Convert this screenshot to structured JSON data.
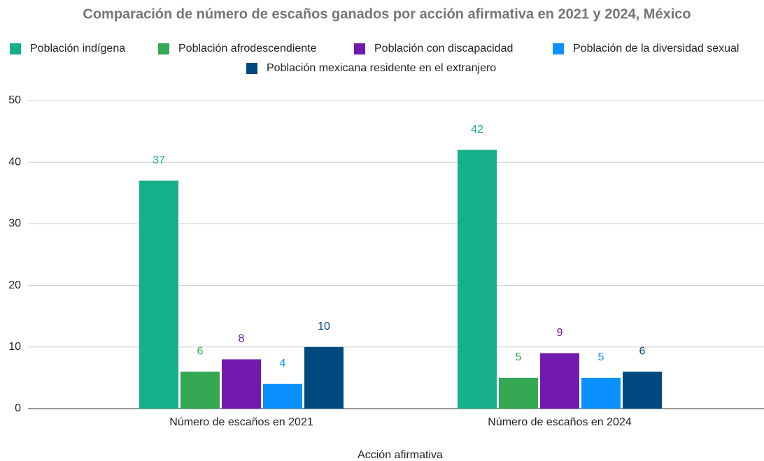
{
  "chart_data": {
    "type": "bar",
    "title": "Comparación de número de escaños ganados por acción afirmativa en 2021 y 2024, México",
    "x_label": "Acción afirmativa",
    "categories": [
      "Número de escaños en 2021",
      "Número de escaños en 2024"
    ],
    "series": [
      {
        "name": "Población indígena",
        "color": "#15b08a",
        "values": [
          37,
          42
        ]
      },
      {
        "name": "Población afrodescendiente",
        "color": "#34a853",
        "values": [
          6,
          5
        ]
      },
      {
        "name": "Población con discapacidad",
        "color": "#7219b0",
        "values": [
          8,
          9
        ]
      },
      {
        "name": "Población de la diversidad sexual",
        "color": "#0a91ff",
        "values": [
          4,
          5
        ]
      },
      {
        "name": "Población mexicana residente en el extranjero",
        "color": "#004a80",
        "values": [
          10,
          6
        ]
      }
    ],
    "ylim": [
      0,
      50
    ],
    "yticks": [
      0,
      10,
      20,
      30,
      40,
      50
    ],
    "grid": true,
    "legend": "top"
  }
}
